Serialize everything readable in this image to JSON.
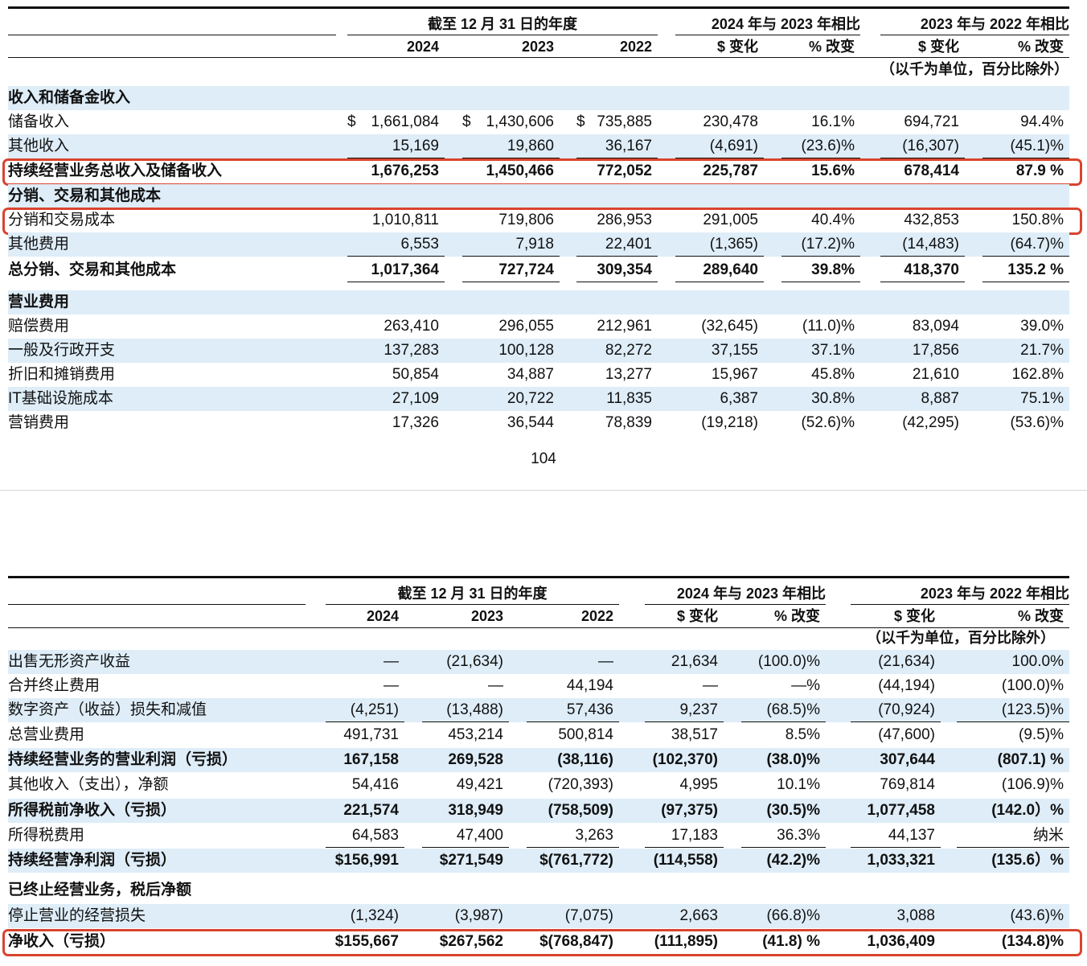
{
  "tables": [
    {
      "header": {
        "period": "截至 12 月 31 日的年度",
        "comparisons": [
          "2024 年与 2023 年相比",
          "2023 年与 2022 年相比"
        ],
        "columns": [
          "2024",
          "2023",
          "2022",
          "$ 变化",
          "% 改变",
          "$ 变化",
          "% 改变"
        ],
        "unit": "（以千为单位，百分比除外）"
      },
      "rows": [
        {
          "label": "收入和储备金收入",
          "bold": true
        },
        {
          "label": "储备收入",
          "cells": [
            {
              "currency": "$",
              "amount": "1,661,084"
            },
            {
              "currency": "$",
              "amount": "1,430,606"
            },
            {
              "currency": "$",
              "amount": "735,885"
            },
            "230,478",
            "16.1%",
            "694,721",
            "94.4%"
          ]
        },
        {
          "label": "其他收入",
          "underline": true,
          "cells": [
            "15,169",
            "19,860",
            "36,167",
            "(4,691)",
            "(23.6)%",
            "(16,307)",
            "(45.1)%"
          ]
        },
        {
          "label": "持续经营业务总收入及储备收入",
          "bold": true,
          "highlight": true,
          "cells": [
            "1,676,253",
            "1,450,466",
            "772,052",
            "225,787",
            "15.6%",
            "678,414",
            "87.9 %"
          ]
        },
        {
          "label": "分销、交易和其他成本",
          "bold": true
        },
        {
          "label": "分销和交易成本",
          "highlight": true,
          "cells": [
            "1,010,811",
            "719,806",
            "286,953",
            "291,005",
            "40.4%",
            "432,853",
            "150.8%"
          ]
        },
        {
          "label": "其他费用",
          "underline": true,
          "cells": [
            "6,553",
            "7,918",
            "22,401",
            "(1,365)",
            "(17.2)%",
            "(14,483)",
            "(64.7)%"
          ]
        },
        {
          "label": "总分销、交易和其他成本",
          "bold": true,
          "underline": true,
          "cells": [
            "1,017,364",
            "727,724",
            "309,354",
            "289,640",
            "39.8%",
            "418,370",
            "135.2 %"
          ]
        },
        {
          "label": "营业费用",
          "bold": true
        },
        {
          "label": "赔偿费用",
          "cells": [
            "263,410",
            "296,055",
            "212,961",
            "(32,645)",
            "(11.0)%",
            "83,094",
            "39.0%"
          ]
        },
        {
          "label": "一般及行政开支",
          "cells": [
            "137,283",
            "100,128",
            "82,272",
            "37,155",
            "37.1%",
            "17,856",
            "21.7%"
          ]
        },
        {
          "label": "折旧和摊销费用",
          "cells": [
            "50,854",
            "34,887",
            "13,277",
            "15,967",
            "45.8%",
            "21,610",
            "162.8%"
          ]
        },
        {
          "label": "IT基础设施成本",
          "cells": [
            "27,109",
            "20,722",
            "11,835",
            "6,387",
            "30.8%",
            "8,887",
            "75.1%"
          ]
        },
        {
          "label": "营销费用",
          "cells": [
            "17,326",
            "36,544",
            "78,839",
            "(19,218)",
            "(52.6)%",
            "(42,295)",
            "(53.6)%"
          ]
        }
      ]
    },
    {
      "header": {
        "period": "截至 12 月 31 日的年度",
        "comparisons": [
          "2024 年与 2023 年相比",
          "2023 年与 2022 年相比"
        ],
        "columns": [
          "2024",
          "2023",
          "2022",
          "$ 变化",
          "% 改变",
          "$ 变化",
          "% 改变"
        ],
        "unit": "（以千为单位，百分比除外）"
      },
      "rows": [
        {
          "label": "出售无形资产收益",
          "cells": [
            "—",
            "(21,634)",
            "—",
            "21,634",
            "(100.0)%",
            "(21,634)",
            "100.0%"
          ]
        },
        {
          "label": "合并终止费用",
          "cells": [
            "—",
            "—",
            "44,194",
            "—",
            "—%",
            "(44,194)",
            "(100.0)%"
          ]
        },
        {
          "label": "数字资产（收益）损失和减值",
          "underline": true,
          "cells": [
            "(4,251)",
            "(13,488)",
            "57,436",
            "9,237",
            "(68.5)%",
            "(70,924)",
            "(123.5)%"
          ]
        },
        {
          "label": "总营业费用",
          "cells": [
            "491,731",
            "453,214",
            "500,814",
            "38,517",
            "8.5%",
            "(47,600)",
            "(9.5)%"
          ]
        },
        {
          "label": "持续经营业务的营业利润（亏损）",
          "bold": true,
          "cells": [
            "167,158",
            "269,528",
            "(38,116)",
            "(102,370)",
            "(38.0)%",
            "307,644",
            "(807.1) %"
          ]
        },
        {
          "label": "其他收入（支出），净额",
          "cells": [
            "54,416",
            "49,421",
            "(720,393)",
            "4,995",
            "10.1%",
            "769,814",
            "(106.9)%"
          ]
        },
        {
          "label": "所得税前净收入（亏损）",
          "bold": true,
          "cells": [
            "221,574",
            "318,949",
            "(758,509)",
            "(97,375)",
            "(30.5)%",
            "1,077,458",
            "(142.0）%"
          ]
        },
        {
          "label": "所得税费用",
          "underline": true,
          "cells": [
            "64,583",
            "47,400",
            "3,263",
            "17,183",
            "36.3%",
            "44,137",
            "纳米"
          ]
        },
        {
          "label": "持续经营净利润（亏损）",
          "bold": true,
          "cells": [
            "$156,991",
            "$271,549",
            "$(761,772)",
            "(114,558)",
            "(42.2)%",
            "1,033,321",
            "(135.6）%"
          ]
        },
        {
          "label": "已终止经营业务，税后净额",
          "bold": true
        },
        {
          "label": "停止营业的经营损失",
          "cells": [
            "(1,324)",
            "(3,987)",
            "(7,075)",
            "2,663",
            "(66.8)%",
            "3,088",
            "(43.6)%"
          ]
        },
        {
          "label": "净收入（亏损）",
          "bold": true,
          "highlight": true,
          "cells": [
            "$155,667",
            "$267,562",
            "$(768,847)",
            "(111,895)",
            "(41.8) %",
            "1,036,409",
            "(134.8)%"
          ]
        }
      ]
    }
  ],
  "page_number": "104"
}
